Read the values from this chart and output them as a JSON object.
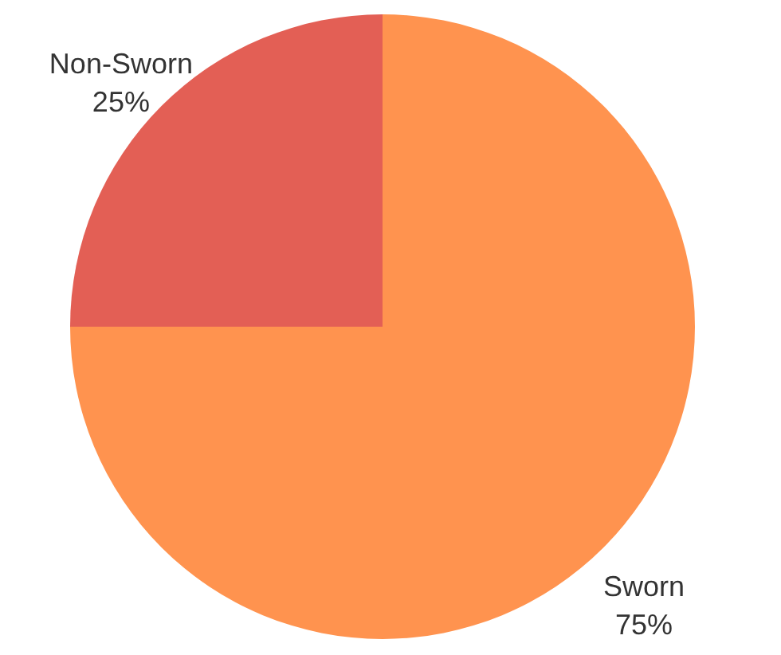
{
  "chart_data": {
    "type": "pie",
    "categories": [
      "Sworn",
      "Non-Sworn"
    ],
    "values": [
      75,
      25
    ],
    "colors": [
      "#ff934f",
      "#e35f55"
    ],
    "value_labels": [
      "75%",
      "25%"
    ]
  }
}
